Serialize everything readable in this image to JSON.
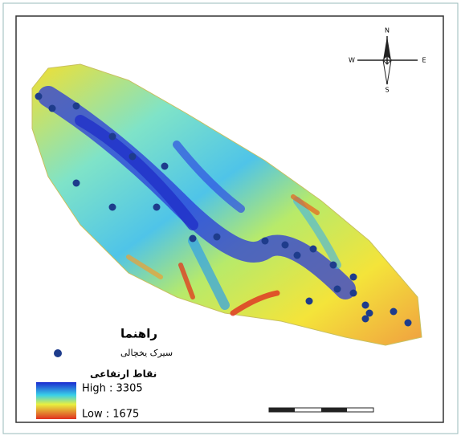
{
  "legend": {
    "title": "راهنما",
    "point_label": "سیرک یخچالی",
    "elevation_title": "نقاط ارتفاعی",
    "high_label": "High : 3305",
    "low_label": "Low : 1675"
  },
  "compass": {
    "north": "N",
    "south": "S",
    "east": "E",
    "west": "W"
  }
}
